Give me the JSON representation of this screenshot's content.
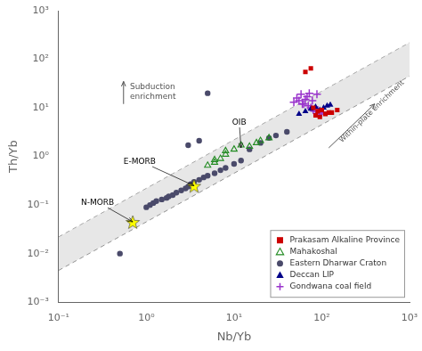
{
  "chart_data": {
    "type": "scatter",
    "xlabel": "Nb/Yb",
    "ylabel": "Th/Yb",
    "log": true,
    "xlim": [
      0.1,
      1000
    ],
    "ylim": [
      0.001,
      1000
    ],
    "xticks": [
      {
        "value": 0.1,
        "label": "10⁻¹"
      },
      {
        "value": 1,
        "label": "10⁰"
      },
      {
        "value": 10,
        "label": "10¹"
      },
      {
        "value": 100,
        "label": "10²"
      },
      {
        "value": 1000,
        "label": "10³"
      }
    ],
    "yticks": [
      {
        "value": 0.001,
        "label": "10⁻³"
      },
      {
        "value": 0.01,
        "label": "10⁻²"
      },
      {
        "value": 0.1,
        "label": "10⁻¹"
      },
      {
        "value": 1,
        "label": "10⁰"
      },
      {
        "value": 10,
        "label": "10¹"
      },
      {
        "value": 100,
        "label": "10²"
      },
      {
        "value": 1000,
        "label": "10³"
      }
    ],
    "grid": false,
    "legend": "lower right",
    "series": [
      {
        "name": "Prakasam Alkaline Province",
        "color": "#cc0000",
        "marker": "square",
        "x": [
          65,
          75,
          80,
          90,
          100,
          110,
          120,
          130,
          150,
          85,
          95
        ],
        "values": [
          55,
          65,
          10,
          8.5,
          9,
          7.5,
          8,
          8,
          9,
          7,
          6.5
        ]
      },
      {
        "name": "Mahakoshal",
        "color": "#228B22",
        "marker": "triangle_open",
        "x": [
          5,
          6,
          7,
          8,
          10,
          12,
          15,
          18,
          20,
          25,
          8,
          6
        ],
        "values": [
          0.65,
          0.75,
          0.9,
          1.1,
          1.4,
          1.7,
          1.6,
          1.9,
          2.1,
          2.4,
          1.3,
          0.85
        ]
      },
      {
        "name": "Eastern Dharwar Craton",
        "color": "#4a4a6a",
        "marker": "circle",
        "x": [
          1.0,
          1.1,
          1.2,
          1.3,
          1.5,
          1.7,
          1.8,
          2.0,
          2.2,
          2.5,
          2.8,
          3.0,
          3.2,
          3.5,
          4.0,
          4.5,
          5.0,
          6.0,
          7.0,
          8.0,
          10.0,
          12.0,
          15.0,
          20.0,
          25.0,
          30.0,
          40.0,
          3.0,
          4.0,
          0.5,
          5.0
        ],
        "values": [
          0.09,
          0.1,
          0.11,
          0.12,
          0.13,
          0.14,
          0.15,
          0.16,
          0.18,
          0.2,
          0.22,
          0.24,
          0.27,
          0.3,
          0.33,
          0.37,
          0.4,
          0.45,
          0.52,
          0.58,
          0.7,
          0.82,
          1.4,
          1.9,
          2.4,
          2.7,
          3.2,
          1.7,
          2.1,
          0.01,
          20.0
        ]
      },
      {
        "name": "Deccan LIP",
        "color": "#000088",
        "marker": "triangle",
        "x": [
          55,
          65,
          75,
          85,
          95,
          105,
          115,
          125
        ],
        "values": [
          7.5,
          8.5,
          9.5,
          10.5,
          9.0,
          10.0,
          11.0,
          11.5
        ]
      },
      {
        "name": "Gondwana coal field",
        "color": "#9933cc",
        "marker": "plus",
        "x": [
          48,
          55,
          60,
          65,
          70,
          75,
          80,
          85,
          90,
          95,
          100,
          58,
          68,
          78,
          88,
          52,
          62,
          72
        ],
        "values": [
          13,
          14,
          12,
          15,
          11,
          10,
          9,
          8.5,
          9,
          7.5,
          8,
          19,
          17,
          14,
          19,
          16,
          12,
          20
        ]
      }
    ],
    "band": {
      "x": [
        0.1,
        1000
      ],
      "upper": [
        0.022,
        220
      ],
      "lower": [
        0.0045,
        45
      ],
      "color": "lightgray",
      "line_style": "dashed"
    },
    "reference_points": [
      {
        "name": "N-MORB",
        "x": 0.7,
        "y": 0.045,
        "color": "yellow",
        "marker": "star",
        "label_x": 0.18,
        "label_y": 0.1
      },
      {
        "name": "E-MORB",
        "x": 3.5,
        "y": 0.25,
        "color": "yellow",
        "marker": "star",
        "label_x": 0.55,
        "label_y": 0.7
      }
    ],
    "annotations": [
      {
        "text": "OIB",
        "x": 9.5,
        "y": 4.5,
        "arrow_to": [
          12,
          1.5
        ]
      },
      {
        "text": "Within-plate enrichment",
        "x": 175,
        "y": 1.8,
        "arrow_from": [
          120,
          1.5
        ],
        "arrow_to": [
          400,
          12
        ]
      },
      {
        "text": "Subduction\nenrichment",
        "x": 0.65,
        "y": 14,
        "arrow_from": [
          0.55,
          12
        ],
        "arrow_to": [
          0.55,
          35
        ]
      }
    ]
  }
}
